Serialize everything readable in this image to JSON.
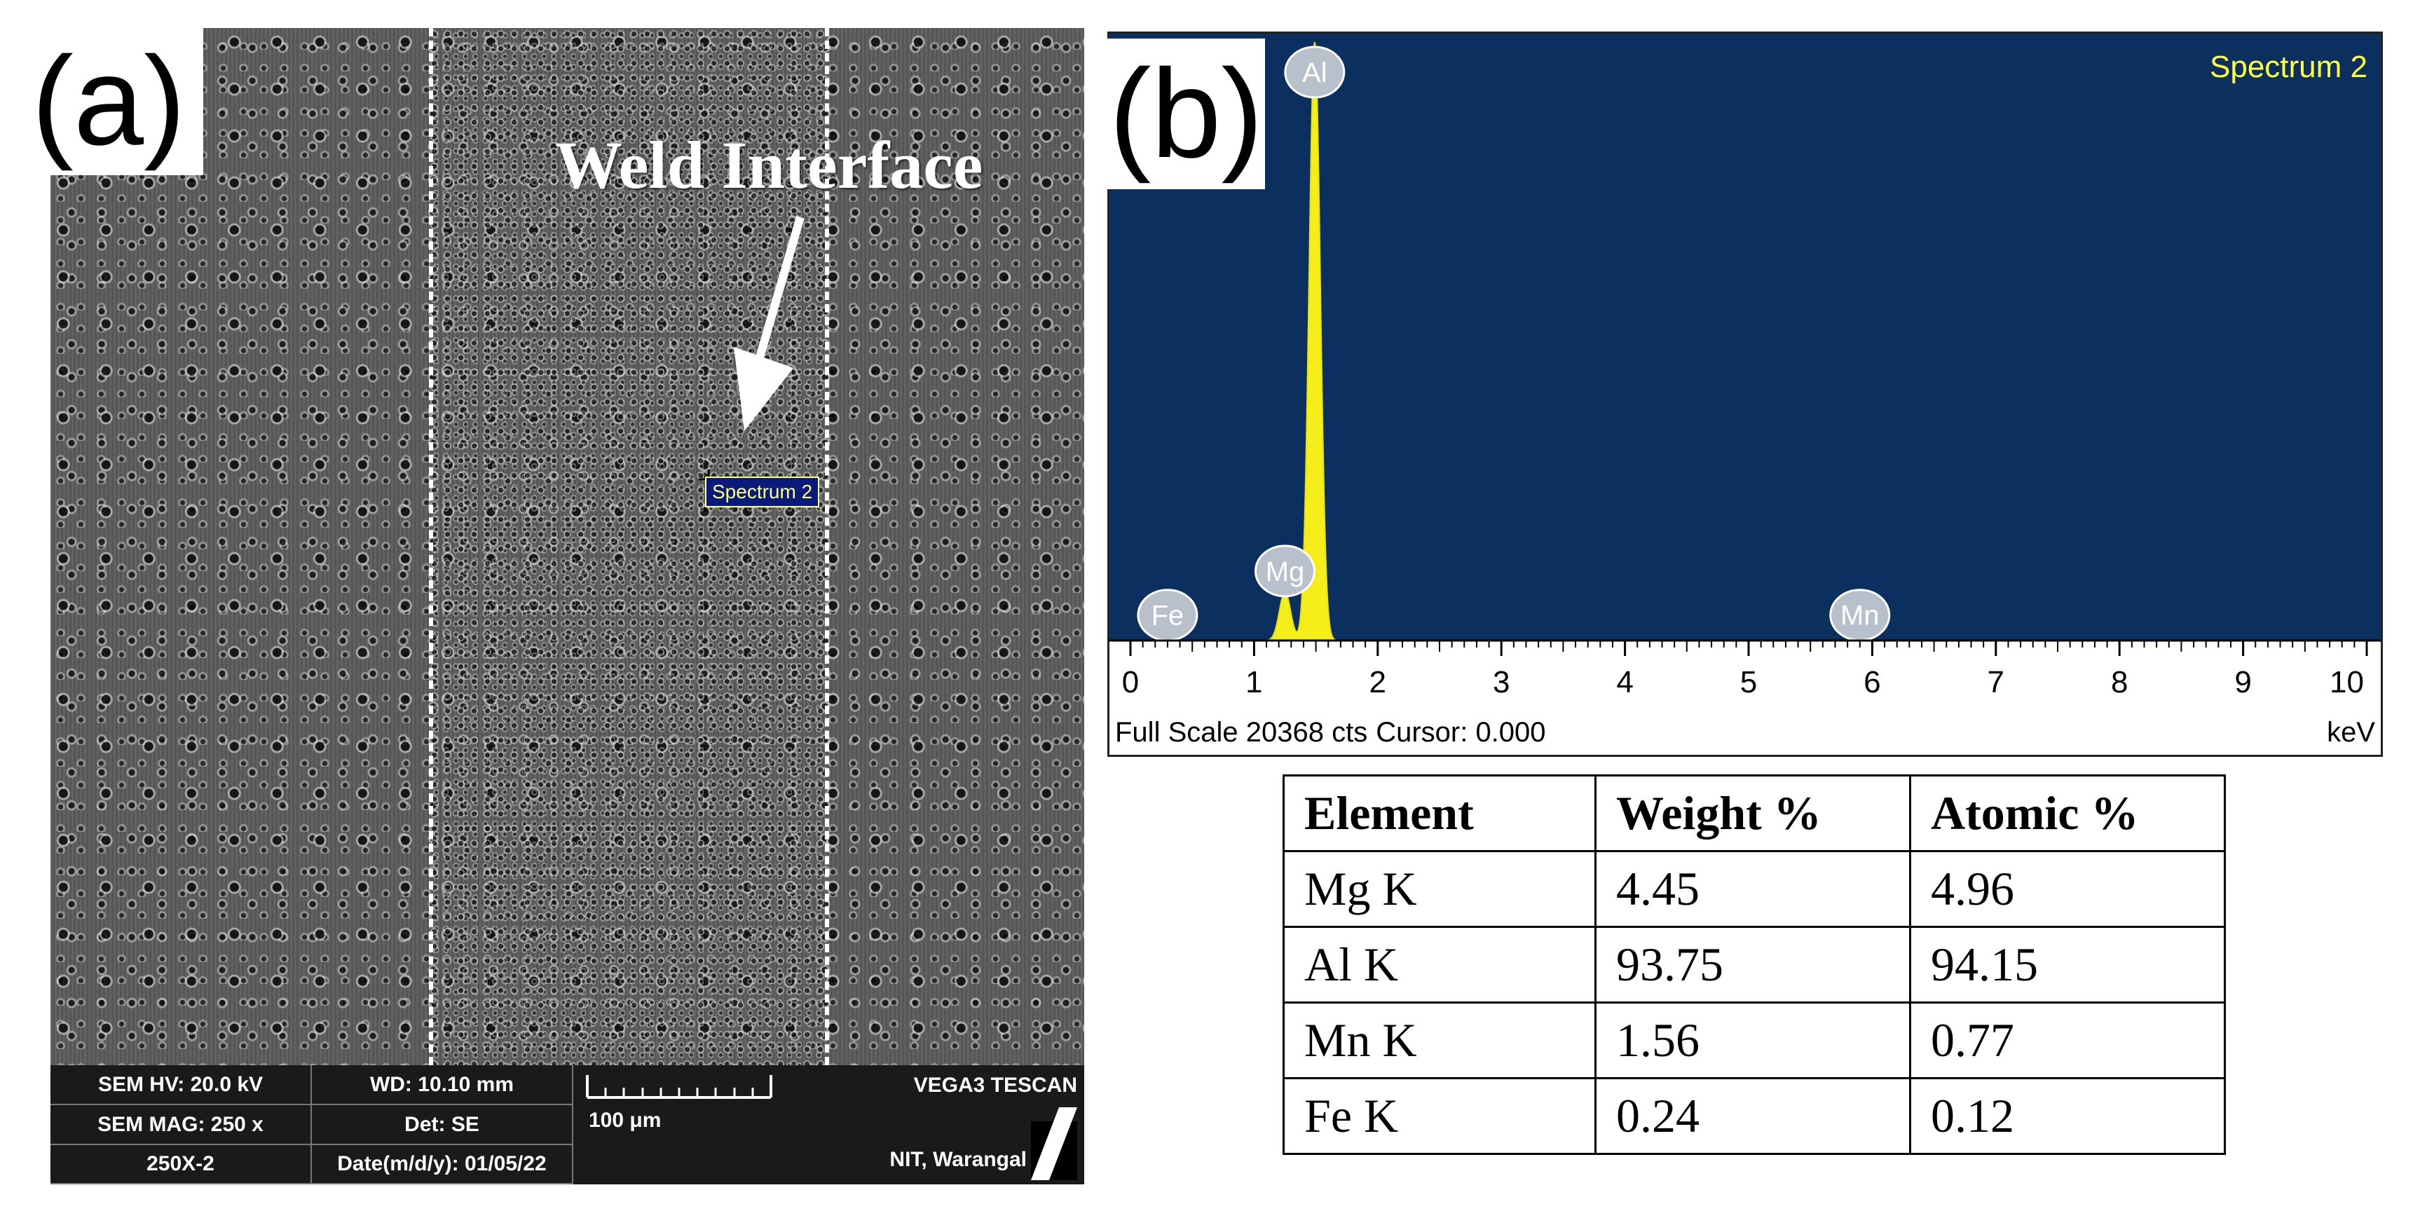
{
  "panel_a": {
    "label": "(a)",
    "annotation": "Weld Interface",
    "spectrum_tag": "Spectrum 2",
    "info_bar": {
      "hv": "SEM HV: 20.0 kV",
      "wd": "WD: 10.10 mm",
      "mag": "SEM MAG: 250 x",
      "det": "Det: SE",
      "name": "250X-2",
      "date": "Date(m/d/y): 01/05/22",
      "scale": "100 μm",
      "vendor": "VEGA3 TESCAN",
      "site": "NIT, Warangal"
    }
  },
  "panel_b": {
    "label": "(b)",
    "status_full_scale": "Full Scale 20368 cts",
    "status_cursor": "Cursor: 0.000",
    "unit": "keV"
  },
  "chart_data": {
    "type": "line",
    "title": "Spectrum 2",
    "xlabel": "keV",
    "ylabel": "",
    "xlim": [
      0,
      10
    ],
    "ylim": [
      0,
      20368
    ],
    "x_ticks": [
      "0",
      "1",
      "2",
      "3",
      "4",
      "5",
      "6",
      "7",
      "8",
      "9",
      "10"
    ],
    "peaks": [
      {
        "element": "Fe",
        "energy": 0.3,
        "counts": 150
      },
      {
        "element": "Mg",
        "energy": 1.25,
        "counts": 1650
      },
      {
        "element": "Al",
        "energy": 1.49,
        "counts": 20368
      },
      {
        "element": "Mn",
        "energy": 5.9,
        "counts": 150
      }
    ],
    "colors": {
      "background": "#0b3060",
      "spectrum": "#f5ee1a",
      "title": "#ffff40",
      "peak_label_bg": "#b8c0cc"
    }
  },
  "composition_table": {
    "headers": [
      "Element",
      "Weight %",
      "Atomic %"
    ],
    "rows": [
      [
        "Mg K",
        "4.45",
        "4.96"
      ],
      [
        "Al K",
        "93.75",
        "94.15"
      ],
      [
        "Mn K",
        "1.56",
        "0.77"
      ],
      [
        "Fe K",
        "0.24",
        "0.12"
      ]
    ]
  }
}
